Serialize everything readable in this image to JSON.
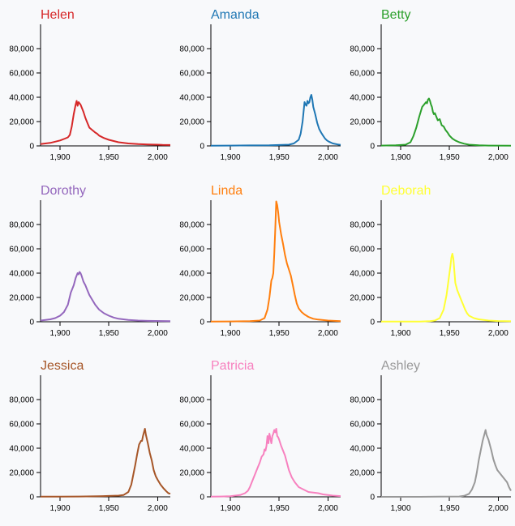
{
  "chart_data": {
    "type": "line",
    "layout": "small-multiples 3x3",
    "xlim": [
      1880,
      2013
    ],
    "ylim": [
      0,
      100000
    ],
    "x_ticks": [
      1900,
      1950,
      2000
    ],
    "x_tick_labels": [
      "1,900",
      "1,950",
      "2,000"
    ],
    "y_ticks": [
      0,
      20000,
      40000,
      60000,
      80000
    ],
    "y_tick_labels": [
      "0",
      "20,000",
      "40,000",
      "60,000",
      "80,000"
    ],
    "panels": [
      {
        "name": "Helen",
        "color": "#d62728",
        "points": [
          [
            1880,
            1500
          ],
          [
            1890,
            2500
          ],
          [
            1900,
            4500
          ],
          [
            1905,
            6000
          ],
          [
            1908,
            7000
          ],
          [
            1910,
            9000
          ],
          [
            1912,
            16000
          ],
          [
            1914,
            26000
          ],
          [
            1916,
            34000
          ],
          [
            1917,
            37000
          ],
          [
            1918,
            33000
          ],
          [
            1919,
            36000
          ],
          [
            1920,
            35000
          ],
          [
            1921,
            34000
          ],
          [
            1922,
            32000
          ],
          [
            1924,
            28000
          ],
          [
            1926,
            23000
          ],
          [
            1928,
            19000
          ],
          [
            1930,
            15000
          ],
          [
            1933,
            13000
          ],
          [
            1936,
            11000
          ],
          [
            1938,
            10000
          ],
          [
            1940,
            8500
          ],
          [
            1945,
            6500
          ],
          [
            1950,
            5000
          ],
          [
            1955,
            4000
          ],
          [
            1960,
            3000
          ],
          [
            1970,
            2000
          ],
          [
            1980,
            1500
          ],
          [
            1990,
            1200
          ],
          [
            2000,
            1000
          ],
          [
            2005,
            800
          ],
          [
            2013,
            700
          ]
        ]
      },
      {
        "name": "Amanda",
        "color": "#1f77b4",
        "points": [
          [
            1880,
            200
          ],
          [
            1900,
            300
          ],
          [
            1920,
            400
          ],
          [
            1940,
            500
          ],
          [
            1950,
            700
          ],
          [
            1960,
            1000
          ],
          [
            1965,
            2000
          ],
          [
            1970,
            5000
          ],
          [
            1972,
            10000
          ],
          [
            1974,
            20000
          ],
          [
            1976,
            36000
          ],
          [
            1977,
            34000
          ],
          [
            1978,
            33000
          ],
          [
            1979,
            37000
          ],
          [
            1980,
            35000
          ],
          [
            1981,
            36000
          ],
          [
            1982,
            40000
          ],
          [
            1983,
            42000
          ],
          [
            1984,
            38000
          ],
          [
            1985,
            32000
          ],
          [
            1987,
            26000
          ],
          [
            1989,
            19000
          ],
          [
            1991,
            14000
          ],
          [
            1993,
            11000
          ],
          [
            1995,
            8500
          ],
          [
            1997,
            6000
          ],
          [
            1999,
            4500
          ],
          [
            2001,
            3500
          ],
          [
            2005,
            2000
          ],
          [
            2010,
            1200
          ],
          [
            2013,
            900
          ]
        ]
      },
      {
        "name": "Betty",
        "color": "#2ca02c",
        "points": [
          [
            1880,
            300
          ],
          [
            1895,
            500
          ],
          [
            1905,
            1000
          ],
          [
            1910,
            3000
          ],
          [
            1913,
            8000
          ],
          [
            1916,
            15000
          ],
          [
            1919,
            24000
          ],
          [
            1922,
            32000
          ],
          [
            1924,
            34000
          ],
          [
            1926,
            36000
          ],
          [
            1927,
            35000
          ],
          [
            1928,
            38000
          ],
          [
            1929,
            39000
          ],
          [
            1930,
            37000
          ],
          [
            1931,
            34000
          ],
          [
            1932,
            32000
          ],
          [
            1933,
            28000
          ],
          [
            1934,
            26000
          ],
          [
            1935,
            27000
          ],
          [
            1936,
            25000
          ],
          [
            1938,
            21000
          ],
          [
            1940,
            22000
          ],
          [
            1942,
            17000
          ],
          [
            1944,
            16000
          ],
          [
            1946,
            13000
          ],
          [
            1948,
            11000
          ],
          [
            1950,
            8500
          ],
          [
            1953,
            6000
          ],
          [
            1956,
            4500
          ],
          [
            1960,
            3000
          ],
          [
            1965,
            1800
          ],
          [
            1970,
            1000
          ],
          [
            1980,
            500
          ],
          [
            1990,
            300
          ],
          [
            2013,
            200
          ]
        ]
      },
      {
        "name": "Dorothy",
        "color": "#9467bd",
        "points": [
          [
            1880,
            1000
          ],
          [
            1890,
            2000
          ],
          [
            1895,
            3000
          ],
          [
            1900,
            5000
          ],
          [
            1904,
            8000
          ],
          [
            1908,
            14000
          ],
          [
            1911,
            24000
          ],
          [
            1914,
            30000
          ],
          [
            1916,
            36000
          ],
          [
            1918,
            40000
          ],
          [
            1919,
            39000
          ],
          [
            1920,
            41000
          ],
          [
            1921,
            40000
          ],
          [
            1922,
            38000
          ],
          [
            1924,
            33000
          ],
          [
            1926,
            30000
          ],
          [
            1928,
            26000
          ],
          [
            1930,
            22000
          ],
          [
            1933,
            18000
          ],
          [
            1936,
            14000
          ],
          [
            1940,
            10000
          ],
          [
            1945,
            7000
          ],
          [
            1950,
            5000
          ],
          [
            1955,
            3500
          ],
          [
            1960,
            2500
          ],
          [
            1970,
            1500
          ],
          [
            1980,
            1000
          ],
          [
            1990,
            700
          ],
          [
            2013,
            500
          ]
        ]
      },
      {
        "name": "Linda",
        "color": "#ff7f0e",
        "points": [
          [
            1880,
            200
          ],
          [
            1900,
            300
          ],
          [
            1920,
            500
          ],
          [
            1930,
            1000
          ],
          [
            1935,
            3000
          ],
          [
            1938,
            10000
          ],
          [
            1940,
            20000
          ],
          [
            1942,
            34000
          ],
          [
            1943,
            36000
          ],
          [
            1944,
            40000
          ],
          [
            1945,
            56000
          ],
          [
            1946,
            76000
          ],
          [
            1947,
            99000
          ],
          [
            1948,
            96000
          ],
          [
            1949,
            90000
          ],
          [
            1950,
            82000
          ],
          [
            1952,
            72000
          ],
          [
            1954,
            64000
          ],
          [
            1956,
            55000
          ],
          [
            1958,
            48000
          ],
          [
            1960,
            43000
          ],
          [
            1962,
            38000
          ],
          [
            1964,
            30000
          ],
          [
            1966,
            22000
          ],
          [
            1968,
            15000
          ],
          [
            1970,
            11000
          ],
          [
            1973,
            8000
          ],
          [
            1976,
            6000
          ],
          [
            1980,
            4000
          ],
          [
            1985,
            2500
          ],
          [
            1990,
            1800
          ],
          [
            2000,
            1000
          ],
          [
            2013,
            500
          ]
        ]
      },
      {
        "name": "Deborah",
        "color": "#ffff33",
        "points": [
          [
            1880,
            100
          ],
          [
            1920,
            200
          ],
          [
            1930,
            500
          ],
          [
            1935,
            1000
          ],
          [
            1940,
            3000
          ],
          [
            1944,
            10000
          ],
          [
            1947,
            22000
          ],
          [
            1949,
            34000
          ],
          [
            1951,
            46000
          ],
          [
            1952,
            53000
          ],
          [
            1953,
            56000
          ],
          [
            1954,
            52000
          ],
          [
            1955,
            42000
          ],
          [
            1956,
            32000
          ],
          [
            1958,
            26000
          ],
          [
            1960,
            22000
          ],
          [
            1962,
            18000
          ],
          [
            1964,
            14000
          ],
          [
            1966,
            10000
          ],
          [
            1968,
            7000
          ],
          [
            1970,
            5000
          ],
          [
            1975,
            3000
          ],
          [
            1980,
            2000
          ],
          [
            1990,
            1000
          ],
          [
            2000,
            600
          ],
          [
            2013,
            400
          ]
        ]
      },
      {
        "name": "Jessica",
        "color": "#a65628",
        "points": [
          [
            1880,
            100
          ],
          [
            1900,
            150
          ],
          [
            1920,
            300
          ],
          [
            1940,
            500
          ],
          [
            1950,
            700
          ],
          [
            1960,
            1000
          ],
          [
            1965,
            1500
          ],
          [
            1970,
            4000
          ],
          [
            1973,
            10000
          ],
          [
            1975,
            18000
          ],
          [
            1977,
            26000
          ],
          [
            1979,
            35000
          ],
          [
            1981,
            43000
          ],
          [
            1983,
            46000
          ],
          [
            1984,
            46000
          ],
          [
            1985,
            50000
          ],
          [
            1986,
            53000
          ],
          [
            1987,
            56000
          ],
          [
            1988,
            51000
          ],
          [
            1990,
            44000
          ],
          [
            1992,
            36000
          ],
          [
            1994,
            30000
          ],
          [
            1996,
            22000
          ],
          [
            1998,
            17000
          ],
          [
            2000,
            14000
          ],
          [
            2003,
            10000
          ],
          [
            2006,
            7000
          ],
          [
            2009,
            4500
          ],
          [
            2011,
            3000
          ],
          [
            2013,
            2500
          ]
        ]
      },
      {
        "name": "Patricia",
        "color": "#f781bf",
        "points": [
          [
            1880,
            200
          ],
          [
            1890,
            300
          ],
          [
            1900,
            500
          ],
          [
            1910,
            1500
          ],
          [
            1915,
            3000
          ],
          [
            1918,
            5000
          ],
          [
            1920,
            8000
          ],
          [
            1922,
            12000
          ],
          [
            1924,
            16000
          ],
          [
            1926,
            20000
          ],
          [
            1928,
            24000
          ],
          [
            1930,
            28000
          ],
          [
            1932,
            33000
          ],
          [
            1934,
            35000
          ],
          [
            1935,
            39000
          ],
          [
            1936,
            38000
          ],
          [
            1937,
            42000
          ],
          [
            1938,
            50000
          ],
          [
            1939,
            44000
          ],
          [
            1940,
            52000
          ],
          [
            1941,
            48000
          ],
          [
            1942,
            44000
          ],
          [
            1943,
            50000
          ],
          [
            1944,
            52000
          ],
          [
            1945,
            55000
          ],
          [
            1946,
            53000
          ],
          [
            1947,
            56000
          ],
          [
            1948,
            50000
          ],
          [
            1949,
            49000
          ],
          [
            1950,
            47000
          ],
          [
            1952,
            42000
          ],
          [
            1954,
            38000
          ],
          [
            1956,
            34000
          ],
          [
            1958,
            28000
          ],
          [
            1960,
            22000
          ],
          [
            1963,
            16000
          ],
          [
            1966,
            12000
          ],
          [
            1970,
            8000
          ],
          [
            1975,
            6000
          ],
          [
            1980,
            4000
          ],
          [
            1985,
            3500
          ],
          [
            1990,
            3000
          ],
          [
            1995,
            2000
          ],
          [
            2000,
            1500
          ],
          [
            2005,
            1000
          ],
          [
            2013,
            600
          ]
        ]
      },
      {
        "name": "Ashley",
        "color": "#999999",
        "points": [
          [
            1880,
            0
          ],
          [
            1920,
            0
          ],
          [
            1940,
            100
          ],
          [
            1960,
            300
          ],
          [
            1965,
            800
          ],
          [
            1970,
            2500
          ],
          [
            1973,
            6000
          ],
          [
            1976,
            12000
          ],
          [
            1978,
            20000
          ],
          [
            1980,
            30000
          ],
          [
            1982,
            38000
          ],
          [
            1984,
            46000
          ],
          [
            1986,
            52000
          ],
          [
            1987,
            55000
          ],
          [
            1988,
            51000
          ],
          [
            1990,
            47000
          ],
          [
            1991,
            44000
          ],
          [
            1993,
            38000
          ],
          [
            1995,
            31000
          ],
          [
            1997,
            26000
          ],
          [
            1999,
            22000
          ],
          [
            2001,
            20000
          ],
          [
            2003,
            18000
          ],
          [
            2005,
            16000
          ],
          [
            2007,
            14000
          ],
          [
            2009,
            12000
          ],
          [
            2011,
            8000
          ],
          [
            2013,
            5000
          ]
        ]
      }
    ]
  }
}
